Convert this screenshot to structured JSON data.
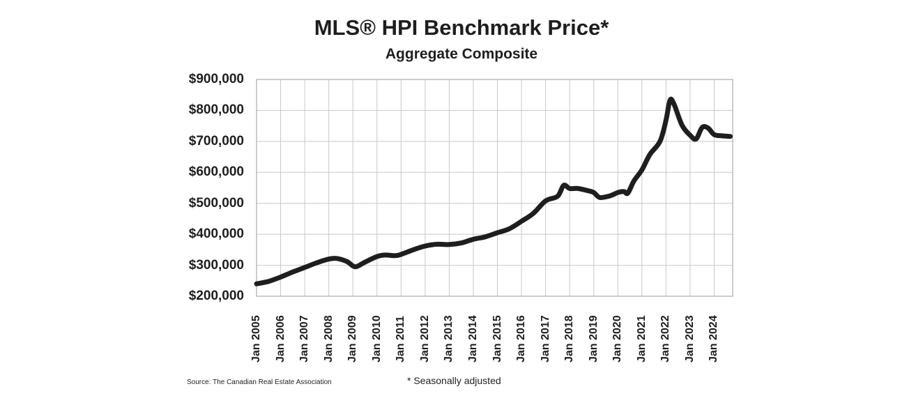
{
  "chart_data": {
    "type": "line",
    "title": "MLS® HPI Benchmark Price*",
    "subtitle": "Aggregate Composite",
    "xlabel": "",
    "ylabel": "",
    "ylim": [
      200000,
      900000
    ],
    "xlim": [
      "2005-01",
      "2024-09"
    ],
    "grid": true,
    "y_ticks": [
      {
        "value": 900000,
        "label": "$900,000"
      },
      {
        "value": 800000,
        "label": "$800,000"
      },
      {
        "value": 700000,
        "label": "$700,000"
      },
      {
        "value": 600000,
        "label": "$600,000"
      },
      {
        "value": 500000,
        "label": "$500,000"
      },
      {
        "value": 400000,
        "label": "$400,000"
      },
      {
        "value": 300000,
        "label": "$300,000"
      },
      {
        "value": 200000,
        "label": "$200,000"
      }
    ],
    "x_ticks": [
      {
        "date": "2005-01",
        "label": "Jan 2005"
      },
      {
        "date": "2006-01",
        "label": "Jan 2006"
      },
      {
        "date": "2007-01",
        "label": "Jan 2007"
      },
      {
        "date": "2008-01",
        "label": "Jan 2008"
      },
      {
        "date": "2009-01",
        "label": "Jan 2009"
      },
      {
        "date": "2010-01",
        "label": "Jan 2010"
      },
      {
        "date": "2011-01",
        "label": "Jan 2011"
      },
      {
        "date": "2012-01",
        "label": "Jan 2012"
      },
      {
        "date": "2013-01",
        "label": "Jan 2013"
      },
      {
        "date": "2014-01",
        "label": "Jan 2014"
      },
      {
        "date": "2015-01",
        "label": "Jan 2015"
      },
      {
        "date": "2016-01",
        "label": "Jan 2016"
      },
      {
        "date": "2017-01",
        "label": "Jan 2017"
      },
      {
        "date": "2018-01",
        "label": "Jan 2018"
      },
      {
        "date": "2019-01",
        "label": "Jan 2019"
      },
      {
        "date": "2020-01",
        "label": "Jan 2020"
      },
      {
        "date": "2021-01",
        "label": "Jan 2021"
      },
      {
        "date": "2022-01",
        "label": "Jan 2022"
      },
      {
        "date": "2023-01",
        "label": "Jan 2023"
      },
      {
        "date": "2024-01",
        "label": "Jan 2024"
      }
    ],
    "series": [
      {
        "color": "#1e1e1e",
        "points": [
          {
            "x": "2005-01",
            "y": 240000
          },
          {
            "x": "2005-07",
            "y": 248000
          },
          {
            "x": "2006-01",
            "y": 262000
          },
          {
            "x": "2006-07",
            "y": 278000
          },
          {
            "x": "2007-01",
            "y": 293000
          },
          {
            "x": "2007-07",
            "y": 308000
          },
          {
            "x": "2008-01",
            "y": 320000
          },
          {
            "x": "2008-05",
            "y": 322000
          },
          {
            "x": "2008-10",
            "y": 312000
          },
          {
            "x": "2009-01",
            "y": 298000
          },
          {
            "x": "2009-03",
            "y": 296000
          },
          {
            "x": "2009-07",
            "y": 310000
          },
          {
            "x": "2010-01",
            "y": 328000
          },
          {
            "x": "2010-05",
            "y": 333000
          },
          {
            "x": "2010-10",
            "y": 331000
          },
          {
            "x": "2011-01",
            "y": 335000
          },
          {
            "x": "2011-07",
            "y": 350000
          },
          {
            "x": "2012-01",
            "y": 362000
          },
          {
            "x": "2012-07",
            "y": 368000
          },
          {
            "x": "2013-01",
            "y": 367000
          },
          {
            "x": "2013-07",
            "y": 372000
          },
          {
            "x": "2014-01",
            "y": 384000
          },
          {
            "x": "2014-07",
            "y": 392000
          },
          {
            "x": "2015-01",
            "y": 405000
          },
          {
            "x": "2015-07",
            "y": 418000
          },
          {
            "x": "2016-01",
            "y": 442000
          },
          {
            "x": "2016-07",
            "y": 468000
          },
          {
            "x": "2017-01",
            "y": 508000
          },
          {
            "x": "2017-07",
            "y": 523000
          },
          {
            "x": "2017-10",
            "y": 558000
          },
          {
            "x": "2018-01",
            "y": 548000
          },
          {
            "x": "2018-05",
            "y": 548000
          },
          {
            "x": "2018-10",
            "y": 541000
          },
          {
            "x": "2019-01",
            "y": 535000
          },
          {
            "x": "2019-04",
            "y": 519000
          },
          {
            "x": "2019-09",
            "y": 524000
          },
          {
            "x": "2020-01",
            "y": 535000
          },
          {
            "x": "2020-04",
            "y": 538000
          },
          {
            "x": "2020-06",
            "y": 533000
          },
          {
            "x": "2020-09",
            "y": 572000
          },
          {
            "x": "2021-01",
            "y": 608000
          },
          {
            "x": "2021-05",
            "y": 658000
          },
          {
            "x": "2021-10",
            "y": 700000
          },
          {
            "x": "2022-01",
            "y": 768000
          },
          {
            "x": "2022-03",
            "y": 833000
          },
          {
            "x": "2022-05",
            "y": 820000
          },
          {
            "x": "2022-09",
            "y": 752000
          },
          {
            "x": "2023-01",
            "y": 720000
          },
          {
            "x": "2023-04",
            "y": 708000
          },
          {
            "x": "2023-07",
            "y": 745000
          },
          {
            "x": "2023-10",
            "y": 743000
          },
          {
            "x": "2024-01",
            "y": 722000
          },
          {
            "x": "2024-05",
            "y": 718000
          },
          {
            "x": "2024-09",
            "y": 716000
          }
        ]
      }
    ]
  },
  "footer": {
    "source": "Source: The Canadian Real Estate Association",
    "note": "* Seasonally adjusted"
  }
}
